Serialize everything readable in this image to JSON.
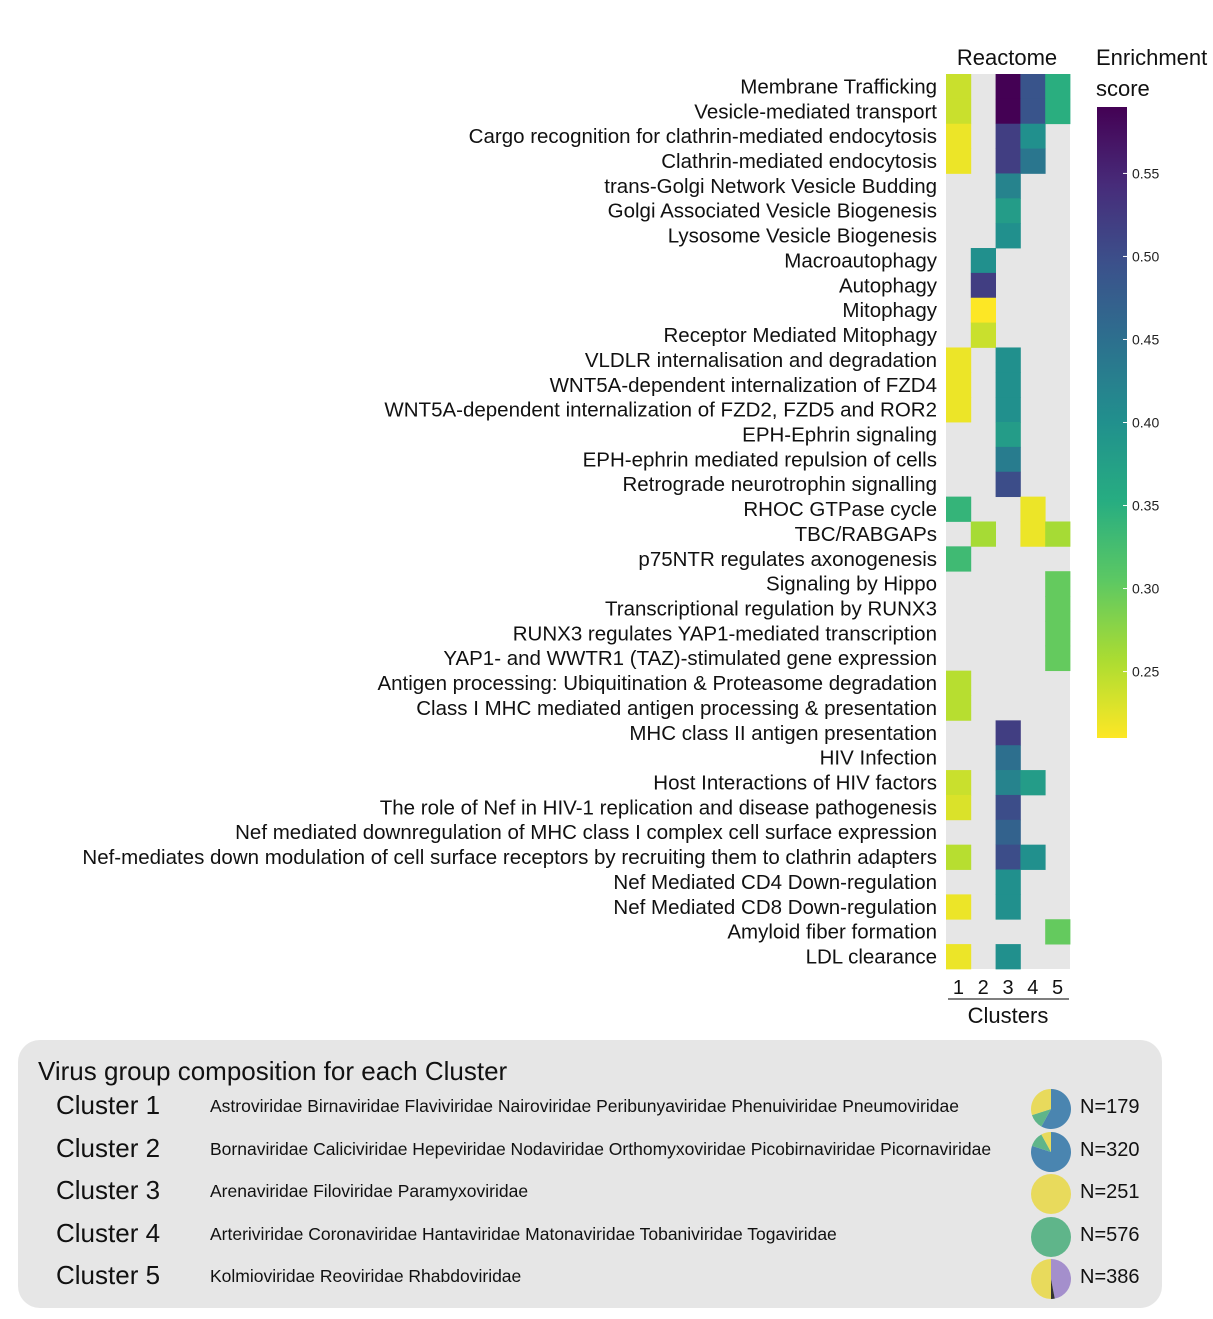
{
  "chart_data": {
    "type": "heatmap",
    "header": "Reactome",
    "xlabel": "Clusters",
    "clusters": [
      "1",
      "2",
      "3",
      "4",
      "5"
    ],
    "colorbar": {
      "title_line1": "Enrichment",
      "title_line2": "score",
      "min": 0.21,
      "max": 0.59,
      "ticks": [
        "0.55",
        "0.50",
        "0.45",
        "0.40",
        "0.35",
        "0.30",
        "0.25"
      ],
      "colormap": "viridis-reversed"
    },
    "missing_color": "#e6e6e6",
    "rows": [
      {
        "label": "Membrane Trafficking",
        "values": [
          0.24,
          null,
          0.59,
          0.49,
          0.35
        ]
      },
      {
        "label": "Vesicle-mediated transport",
        "values": [
          0.24,
          null,
          0.59,
          0.49,
          0.35
        ]
      },
      {
        "label": "Cargo recognition for clathrin-mediated endocytosis",
        "values": [
          0.22,
          null,
          0.52,
          0.4,
          null
        ]
      },
      {
        "label": "Clathrin-mediated endocytosis",
        "values": [
          0.22,
          null,
          0.52,
          0.44,
          null
        ]
      },
      {
        "label": "trans-Golgi Network Vesicle Budding",
        "values": [
          null,
          null,
          0.42,
          null,
          null
        ]
      },
      {
        "label": "Golgi Associated Vesicle Biogenesis",
        "values": [
          null,
          null,
          0.38,
          null,
          null
        ]
      },
      {
        "label": "Lysosome Vesicle Biogenesis",
        "values": [
          null,
          null,
          0.4,
          null,
          null
        ]
      },
      {
        "label": "Macroautophagy",
        "values": [
          null,
          0.4,
          null,
          null,
          null
        ]
      },
      {
        "label": "Autophagy",
        "values": [
          null,
          0.52,
          null,
          null,
          null
        ]
      },
      {
        "label": "Mitophagy",
        "values": [
          null,
          0.21,
          null,
          null,
          null
        ]
      },
      {
        "label": "Receptor Mediated Mitophagy",
        "values": [
          null,
          0.24,
          null,
          null,
          null
        ]
      },
      {
        "label": "VLDLR internalisation and degradation",
        "values": [
          0.22,
          null,
          0.4,
          null,
          null
        ]
      },
      {
        "label": "WNT5A-dependent internalization of FZD4",
        "values": [
          0.22,
          null,
          0.4,
          null,
          null
        ]
      },
      {
        "label": "WNT5A-dependent internalization of FZD2, FZD5 and ROR2",
        "values": [
          0.22,
          null,
          0.4,
          null,
          null
        ]
      },
      {
        "label": "EPH-Ephrin signaling",
        "values": [
          null,
          null,
          0.38,
          null,
          null
        ]
      },
      {
        "label": "EPH-ephrin mediated repulsion of cells",
        "values": [
          null,
          null,
          0.43,
          null,
          null
        ]
      },
      {
        "label": "Retrograde neurotrophin signalling",
        "values": [
          null,
          null,
          0.5,
          null,
          null
        ]
      },
      {
        "label": "RHOC GTPase cycle",
        "values": [
          0.34,
          null,
          null,
          0.22,
          null
        ]
      },
      {
        "label": "TBC/RABGAPs",
        "values": [
          null,
          0.26,
          null,
          0.22,
          0.26
        ]
      },
      {
        "label": "p75NTR regulates axonogenesis",
        "values": [
          0.33,
          null,
          null,
          null,
          null
        ]
      },
      {
        "label": "Signaling by Hippo",
        "values": [
          null,
          null,
          null,
          null,
          0.3
        ]
      },
      {
        "label": "Transcriptional regulation by RUNX3",
        "values": [
          null,
          null,
          null,
          null,
          0.3
        ]
      },
      {
        "label": "RUNX3 regulates YAP1-mediated transcription",
        "values": [
          null,
          null,
          null,
          null,
          0.3
        ]
      },
      {
        "label": "YAP1- and WWTR1 (TAZ)-stimulated gene expression",
        "values": [
          null,
          null,
          null,
          null,
          0.3
        ]
      },
      {
        "label": "Antigen processing: Ubiquitination & Proteasome degradation",
        "values": [
          0.25,
          null,
          null,
          null,
          null
        ]
      },
      {
        "label": "Class I MHC mediated antigen processing & presentation",
        "values": [
          0.25,
          null,
          null,
          null,
          null
        ]
      },
      {
        "label": "MHC class II antigen presentation",
        "values": [
          null,
          null,
          0.52,
          null,
          null
        ]
      },
      {
        "label": "HIV Infection",
        "values": [
          null,
          null,
          0.45,
          null,
          null
        ]
      },
      {
        "label": "Host Interactions of HIV factors",
        "values": [
          0.24,
          null,
          0.42,
          0.38,
          null
        ]
      },
      {
        "label": "The role of Nef in HIV-1 replication and disease pathogenesis",
        "values": [
          0.23,
          null,
          0.5,
          null,
          null
        ]
      },
      {
        "label": "Nef mediated downregulation of MHC class I complex cell surface expression",
        "values": [
          null,
          null,
          0.47,
          null,
          null
        ]
      },
      {
        "label": "Nef-mediates down modulation of cell surface receptors by recruiting them to clathrin adapters",
        "values": [
          0.25,
          null,
          0.5,
          0.4,
          null
        ]
      },
      {
        "label": "Nef Mediated CD4 Down-regulation",
        "values": [
          null,
          null,
          0.4,
          null,
          null
        ]
      },
      {
        "label": "Nef Mediated CD8 Down-regulation",
        "values": [
          0.22,
          null,
          0.4,
          null,
          null
        ]
      },
      {
        "label": "Amyloid fiber formation",
        "values": [
          null,
          null,
          null,
          null,
          0.3
        ]
      },
      {
        "label": "LDL clearance",
        "values": [
          0.22,
          null,
          0.4,
          null,
          null
        ]
      }
    ]
  },
  "composition": {
    "title": "Virus group composition for each Cluster",
    "clusters": [
      {
        "name": "Cluster 1",
        "families": "Astroviridae Birnaviridae Flaviviridae Nairoviridae Peribunyaviridae Phenuiviridae Pneumoviridae",
        "n": "N=179",
        "pie": [
          {
            "fraction": 0.58,
            "color": "#4a85b0"
          },
          {
            "fraction": 0.12,
            "color": "#5fb58a"
          },
          {
            "fraction": 0.3,
            "color": "#e8da5c"
          }
        ]
      },
      {
        "name": "Cluster 2",
        "families": "Bornaviridae Caliciviridae Hepeviridae Nodaviridae Orthomyxoviridae Picobirnaviridae Picornaviridae",
        "n": "N=320",
        "pie": [
          {
            "fraction": 0.8,
            "color": "#4a85b0"
          },
          {
            "fraction": 0.12,
            "color": "#5fb58a"
          },
          {
            "fraction": 0.08,
            "color": "#e8da5c"
          }
        ]
      },
      {
        "name": "Cluster 3",
        "families": "Arenaviridae Filoviridae Paramyxoviridae",
        "n": "N=251",
        "pie": [
          {
            "fraction": 1.0,
            "color": "#e8da5c"
          }
        ]
      },
      {
        "name": "Cluster 4",
        "families": "Arteriviridae Coronaviridae Hantaviridae Matonaviridae Tobaniviridae Togaviridae",
        "n": "N=576",
        "pie": [
          {
            "fraction": 1.0,
            "color": "#5fb58a"
          }
        ]
      },
      {
        "name": "Cluster 5",
        "families": "Kolmioviridae Reoviridae Rhabdoviridae",
        "n": "N=386",
        "pie": [
          {
            "fraction": 0.47,
            "color": "#a48fcc"
          },
          {
            "fraction": 0.03,
            "color": "#333333"
          },
          {
            "fraction": 0.5,
            "color": "#e8da5c"
          }
        ]
      }
    ]
  }
}
